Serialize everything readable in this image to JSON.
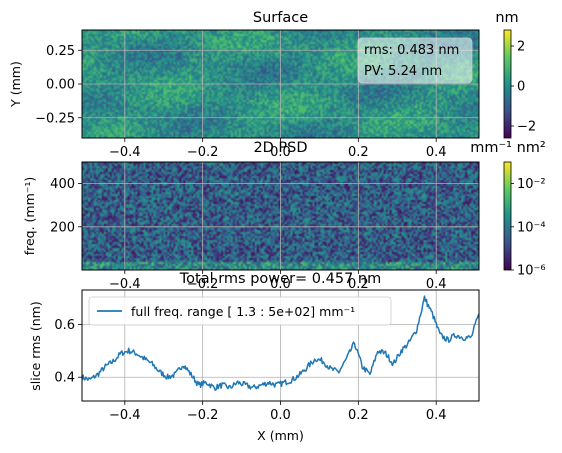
{
  "chart_data": [
    {
      "type": "heatmap",
      "title": "Surface",
      "xlabel": "",
      "ylabel": "Y (mm)",
      "xlim": [
        -0.51,
        0.51
      ],
      "ylim": [
        -0.4,
        0.4
      ],
      "xticks": [
        -0.4,
        -0.2,
        0.0,
        0.2,
        0.4
      ],
      "xtick_labels": [
        "−0.4",
        "−0.2",
        "0.0",
        "0.2",
        "0.4"
      ],
      "yticks": [
        0.25,
        0.0,
        -0.25
      ],
      "ytick_labels": [
        "0.25",
        "0.00",
        "−0.25"
      ],
      "grid": true,
      "colormap": "viridis",
      "colorbar": {
        "title": "nm",
        "range": [
          -2.6,
          2.8
        ],
        "ticks": [
          2,
          0,
          -2
        ],
        "tick_labels": [
          "2",
          "0",
          "−2"
        ]
      },
      "annotations": [
        "rms: 0.483 nm",
        "PV: 5.24 nm"
      ],
      "annotation_placement": "top-right"
    },
    {
      "type": "heatmap",
      "title": "2D PSD",
      "xlabel": "",
      "ylabel": "freq. (mm⁻¹)",
      "xlim": [
        -0.51,
        0.51
      ],
      "ylim": [
        0,
        500
      ],
      "xticks": [
        -0.4,
        -0.2,
        0.0,
        0.2,
        0.4
      ],
      "xtick_labels": [
        "−0.4",
        "−0.2",
        "0.0",
        "0.2",
        "0.4"
      ],
      "yticks": [
        400,
        200
      ],
      "ytick_labels": [
        "400",
        "200"
      ],
      "grid": true,
      "colormap": "viridis",
      "colorbar": {
        "title": "mm⁻¹ nm²",
        "scale": "log",
        "range": [
          1e-06,
          0.1
        ],
        "ticks": [
          0.01,
          0.0001,
          1e-06
        ],
        "tick_labels": [
          "10⁻²",
          "10⁻⁴",
          "10⁻⁶"
        ]
      }
    },
    {
      "type": "line",
      "title": "Total rms power= 0.457 nm",
      "xlabel": "X (mm)",
      "ylabel": "slice rms (nm)",
      "xlim": [
        -0.51,
        0.51
      ],
      "ylim": [
        0.31,
        0.73
      ],
      "xticks": [
        -0.4,
        -0.2,
        0.0,
        0.2,
        0.4
      ],
      "xtick_labels": [
        "−0.4",
        "−0.2",
        "0.0",
        "0.2",
        "0.4"
      ],
      "yticks": [
        0.6,
        0.4
      ],
      "ytick_labels": [
        "0.6",
        "0.4"
      ],
      "grid": true,
      "legend_placement": "top-left",
      "series": [
        {
          "name": "full freq. range [ 1.3 : 5e+02] mm⁻¹",
          "color": "#1f77b4",
          "x": [
            -0.51,
            -0.49,
            -0.47,
            -0.45,
            -0.43,
            -0.41,
            -0.39,
            -0.37,
            -0.35,
            -0.33,
            -0.31,
            -0.29,
            -0.27,
            -0.25,
            -0.23,
            -0.21,
            -0.19,
            -0.17,
            -0.15,
            -0.13,
            -0.11,
            -0.09,
            -0.07,
            -0.05,
            -0.03,
            -0.01,
            0.01,
            0.03,
            0.05,
            0.07,
            0.09,
            0.11,
            0.13,
            0.15,
            0.17,
            0.19,
            0.21,
            0.23,
            0.25,
            0.27,
            0.29,
            0.31,
            0.33,
            0.35,
            0.37,
            0.39,
            0.41,
            0.43,
            0.45,
            0.47,
            0.49,
            0.51
          ],
          "y": [
            0.4,
            0.39,
            0.41,
            0.44,
            0.46,
            0.49,
            0.5,
            0.49,
            0.47,
            0.45,
            0.42,
            0.4,
            0.41,
            0.45,
            0.41,
            0.37,
            0.38,
            0.36,
            0.37,
            0.36,
            0.38,
            0.37,
            0.36,
            0.37,
            0.38,
            0.37,
            0.38,
            0.39,
            0.41,
            0.44,
            0.47,
            0.46,
            0.43,
            0.42,
            0.47,
            0.53,
            0.44,
            0.41,
            0.5,
            0.49,
            0.45,
            0.5,
            0.53,
            0.58,
            0.7,
            0.64,
            0.56,
            0.54,
            0.56,
            0.55,
            0.55,
            0.64
          ]
        }
      ]
    }
  ]
}
